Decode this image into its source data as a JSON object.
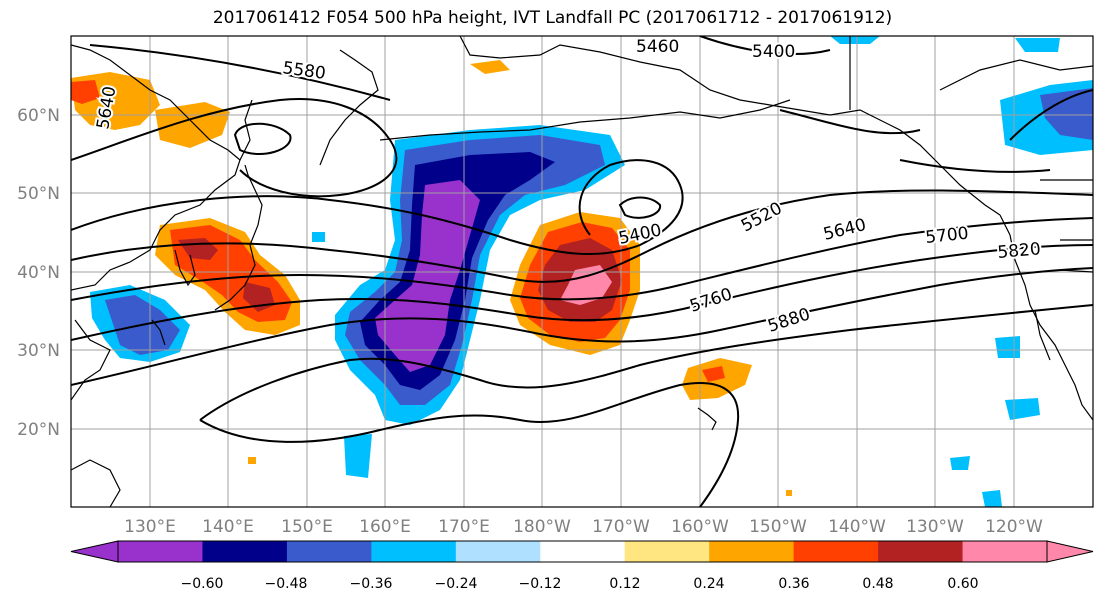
{
  "title": "2017061412 F054 500 hPa height, IVT Landfall PC (2017061712 - 2017061912)",
  "map": {
    "lon_labels": [
      "130°E",
      "140°E",
      "150°E",
      "160°E",
      "170°E",
      "180°W",
      "170°W",
      "160°W",
      "150°W",
      "140°W",
      "130°W",
      "120°W"
    ],
    "lat_labels": [
      "60°N",
      "50°N",
      "40°N",
      "30°N",
      "20°N"
    ],
    "contour_labels": [
      "5460",
      "5400",
      "5580",
      "5640",
      "5520",
      "5400",
      "5640",
      "5700",
      "5820",
      "5760",
      "5880"
    ]
  },
  "colorbar": {
    "ticks": [
      "−0.60",
      "−0.48",
      "−0.36",
      "−0.24",
      "−0.12",
      "0.12",
      "0.24",
      "0.36",
      "0.48",
      "0.60"
    ],
    "colors": [
      "#9932cc",
      "#00008b",
      "#3a5bcc",
      "#00bfff",
      "#b0e0ff",
      "#ffffff",
      "#ffe680",
      "#ffa500",
      "#ff4000",
      "#b22222",
      "#ff88aa"
    ]
  }
}
